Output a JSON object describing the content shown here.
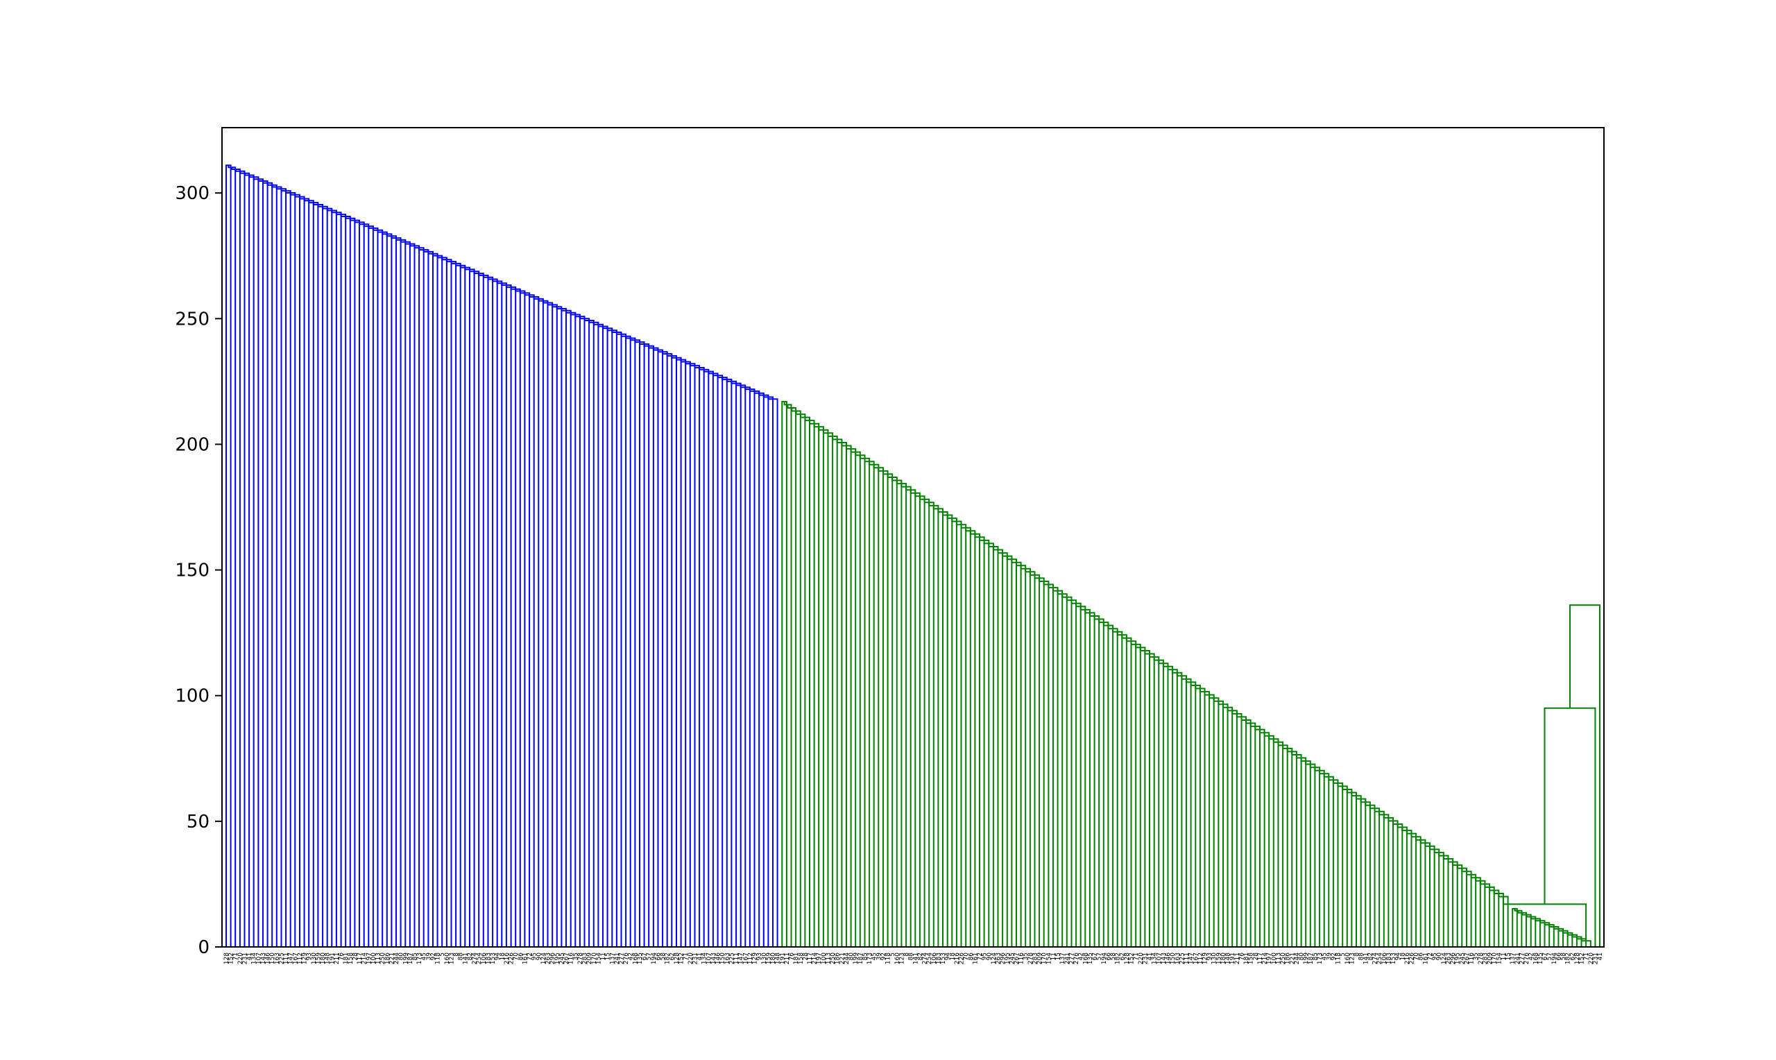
{
  "figure": {
    "background": "#ffffff"
  },
  "chart_data": {
    "type": "dendrogram",
    "title": "",
    "xlabel": "",
    "ylabel": "",
    "ylim": [
      0,
      326
    ],
    "yticks": [
      0,
      50,
      100,
      150,
      200,
      250,
      300
    ],
    "grid": false,
    "legend": "none",
    "colors": {
      "cluster_1": "#0000ff",
      "cluster_2": "#008000",
      "frame": "#000000"
    },
    "leaf_count": 300,
    "leaf_labels_visible": [
      "128",
      "152",
      "71",
      "220",
      "231",
      "41",
      "134",
      "107",
      "143",
      "146",
      "150",
      "163",
      "225",
      "111",
      "147",
      "167",
      "112",
      "129",
      "93",
      "130",
      "159",
      "180",
      "148",
      "191",
      "211",
      "76",
      "181",
      "158",
      "28",
      "117",
      "214",
      "197",
      "100",
      "113",
      "250",
      "186",
      "221",
      "244",
      "80",
      "199",
      "187",
      "85",
      "173",
      "45",
      "39",
      "92",
      "118",
      "5",
      "160",
      "123",
      "8",
      "88",
      "141",
      "82",
      "274",
      "254",
      "106",
      "183",
      "153",
      "94",
      "18",
      "216",
      "226",
      "70",
      "86",
      "161",
      "72",
      "95",
      "90",
      "124",
      "263",
      "296",
      "195",
      "245",
      "267",
      "116",
      "35",
      "278",
      "283",
      "209",
      "170",
      "154",
      "11",
      "15",
      "137",
      "241",
      "277",
      "276",
      "42",
      "168",
      "135",
      "67",
      "57",
      "194",
      "66",
      "58",
      "182",
      "62"
    ],
    "clusters": [
      {
        "name": "",
        "color": "#0000ff",
        "merge_heights_range": [
          218,
          311
        ]
      },
      {
        "name": "",
        "color": "#008000",
        "merge_heights_range": [
          2,
          217
        ]
      }
    ],
    "notable_merges": [
      {
        "height": 136,
        "description": "final merge of green cluster (rightmost)"
      },
      {
        "height": 95,
        "description": "second-level merge"
      },
      {
        "height": 17,
        "description": "low-level merge near right edge"
      },
      {
        "height": 2,
        "description": "pair of nearly identical leaves"
      }
    ]
  }
}
